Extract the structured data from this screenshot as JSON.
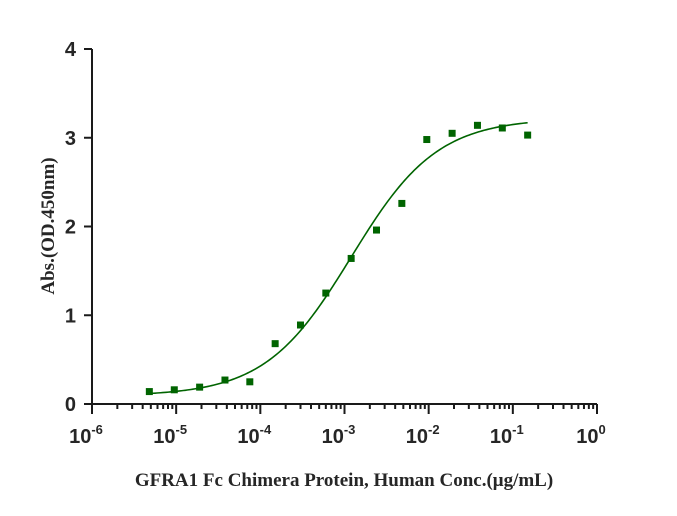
{
  "chart_data": {
    "type": "scatter",
    "title": "",
    "xlabel": "GFRA1 Fc Chimera Protein, Human Conc.(μg/mL)",
    "ylabel": "Abs.(OD.450nm)",
    "x_scale": "log",
    "xlim": [
      1e-06,
      1
    ],
    "ylim": [
      0,
      4
    ],
    "grid": false,
    "x_ticks": [
      {
        "base": "10",
        "exp": "-6",
        "value": 1e-06
      },
      {
        "base": "10",
        "exp": "-5",
        "value": 1e-05
      },
      {
        "base": "10",
        "exp": "-4",
        "value": 0.0001
      },
      {
        "base": "10",
        "exp": "-3",
        "value": 0.001
      },
      {
        "base": "10",
        "exp": "-2",
        "value": 0.01
      },
      {
        "base": "10",
        "exp": "-1",
        "value": 0.1
      },
      {
        "base": "10",
        "exp": "0",
        "value": 1
      }
    ],
    "y_ticks": [
      "0",
      "1",
      "2",
      "3",
      "4"
    ],
    "color": "#006400",
    "points": [
      {
        "x": 4.8e-06,
        "y": 0.14
      },
      {
        "x": 9.5e-06,
        "y": 0.16
      },
      {
        "x": 1.9e-05,
        "y": 0.19
      },
      {
        "x": 3.8e-05,
        "y": 0.27
      },
      {
        "x": 7.5e-05,
        "y": 0.25
      },
      {
        "x": 0.00015,
        "y": 0.68
      },
      {
        "x": 0.0003,
        "y": 0.89
      },
      {
        "x": 0.0006,
        "y": 1.25
      },
      {
        "x": 0.0012,
        "y": 1.64
      },
      {
        "x": 0.0024,
        "y": 1.96
      },
      {
        "x": 0.0048,
        "y": 2.26
      },
      {
        "x": 0.0095,
        "y": 2.98
      },
      {
        "x": 0.019,
        "y": 3.05
      },
      {
        "x": 0.038,
        "y": 3.14
      },
      {
        "x": 0.075,
        "y": 3.11
      },
      {
        "x": 0.15,
        "y": 3.03
      }
    ],
    "fit_curve": {
      "type": "4PL",
      "bottom": 0.09,
      "top": 3.22,
      "ec50": 0.0012,
      "hill": 0.85,
      "x_range": [
        4.8e-06,
        0.15
      ]
    }
  }
}
